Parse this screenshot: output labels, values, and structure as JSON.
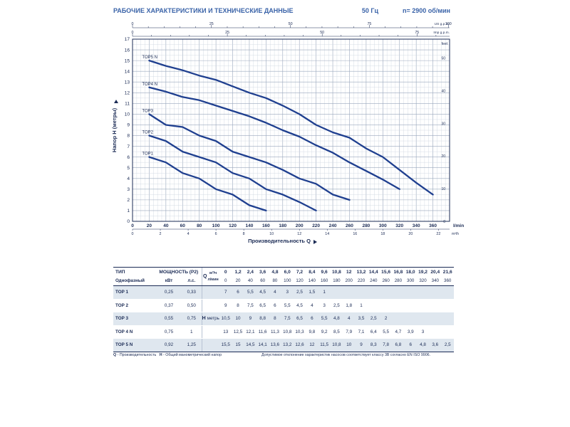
{
  "header": {
    "title": "РАБОЧИЕ ХАРАКТЕРИСТИКИ И ТЕХНИЧЕСКИЕ ДАННЫЕ",
    "freq": "50 Гц",
    "speed": "n= 2900 об/мин"
  },
  "chart_data": {
    "type": "line",
    "ylabel": "Напор H (метры)",
    "xlabel": "Производительность Q",
    "x_unit": "l/min",
    "x2_unit": "m³/h",
    "y2_unit": "feet",
    "top_axis_us_unit": "US g.p.m.",
    "top_axis_imp_unit": "Imp g.p.m.",
    "xlim": [
      0,
      380
    ],
    "ylim": [
      0,
      17
    ],
    "grid": true,
    "y_ticks": [
      "0",
      "1",
      "2",
      "3",
      "4",
      "5",
      "6",
      "7",
      "8",
      "9",
      "10",
      "11",
      "12",
      "13",
      "14",
      "15",
      "16",
      "17"
    ],
    "x_ticks": [
      "0",
      "20",
      "40",
      "60",
      "80",
      "100",
      "120",
      "140",
      "160",
      "180",
      "200",
      "220",
      "240",
      "260",
      "280",
      "300",
      "320",
      "340",
      "360"
    ],
    "x2_ticks": [
      "0",
      "2",
      "4",
      "6",
      "8",
      "10",
      "12",
      "14",
      "16",
      "18",
      "20",
      "22"
    ],
    "y2_ticks": [
      "0",
      "10",
      "20",
      "30",
      "40",
      "50"
    ],
    "top_us_ticks": [
      "0",
      "25",
      "50",
      "75",
      "100"
    ],
    "top_imp_ticks": [
      "0",
      "25",
      "50",
      "75"
    ],
    "series": [
      {
        "name": "TOP5 N",
        "x": [
          20,
          40,
          60,
          80,
          100,
          120,
          140,
          160,
          180,
          200,
          220,
          240,
          260,
          280,
          300,
          320,
          340,
          360
        ],
        "y": [
          15,
          14.5,
          14.1,
          13.6,
          13.2,
          12.6,
          12,
          11.5,
          10.8,
          10,
          9,
          8.3,
          7.8,
          6.8,
          6,
          4.8,
          3.6,
          2.5
        ]
      },
      {
        "name": "TOP4 N",
        "x": [
          20,
          40,
          60,
          80,
          100,
          120,
          140,
          160,
          180,
          200,
          220,
          240,
          260,
          280,
          300,
          320
        ],
        "y": [
          12.5,
          12.1,
          11.6,
          11.3,
          10.8,
          10.3,
          9.8,
          9.2,
          8.5,
          7.9,
          7.1,
          6.4,
          5.5,
          4.7,
          3.9,
          3
        ]
      },
      {
        "name": "TOP3",
        "x": [
          20,
          40,
          60,
          80,
          100,
          120,
          140,
          160,
          180,
          200,
          220,
          240,
          260
        ],
        "y": [
          10,
          9,
          8.8,
          8,
          7.5,
          6.5,
          6,
          5.5,
          4.8,
          4,
          3.5,
          2.5,
          2
        ]
      },
      {
        "name": "TOP2",
        "x": [
          20,
          40,
          60,
          80,
          100,
          120,
          140,
          160,
          180,
          200,
          220
        ],
        "y": [
          8,
          7.5,
          6.5,
          6,
          5.5,
          4.5,
          4,
          3,
          2.5,
          1.8,
          1
        ]
      },
      {
        "name": "TOP1",
        "x": [
          20,
          40,
          60,
          80,
          100,
          120,
          140,
          160
        ],
        "y": [
          6,
          5.5,
          4.5,
          4,
          3,
          2.5,
          1.5,
          1
        ]
      }
    ],
    "color": "#1f3f8f"
  },
  "table": {
    "head": {
      "type": "ТИП",
      "power": "МОЩНОСТЬ (P2)",
      "single_phase": "Однофазный",
      "kw": "кВт",
      "hp": "л.с.",
      "q": "Q",
      "m3h": "м³/ч",
      "lmin": "л/мин",
      "m3h_values": [
        "0",
        "1,2",
        "2,4",
        "3,6",
        "4,8",
        "6,0",
        "7,2",
        "8,4",
        "9,6",
        "10,8",
        "12",
        "13,2",
        "14,4",
        "15,6",
        "16,8",
        "18,0",
        "19,2",
        "20,4",
        "21,6"
      ],
      "lmin_values": [
        "0",
        "20",
        "40",
        "60",
        "80",
        "100",
        "120",
        "140",
        "160",
        "180",
        "200",
        "220",
        "240",
        "260",
        "280",
        "300",
        "320",
        "340",
        "360"
      ]
    },
    "h_label": "H",
    "h_unit": "метры",
    "rows": [
      {
        "name": "TOP 1",
        "kw": "0,25",
        "hp": "0,33",
        "h": [
          "7",
          "6",
          "5,5",
          "4,5",
          "4",
          "3",
          "2,5",
          "1,5",
          "1",
          "",
          "",
          "",
          "",
          "",
          "",
          "",
          "",
          "",
          ""
        ]
      },
      {
        "name": "TOP 2",
        "kw": "0,37",
        "hp": "0,50",
        "h": [
          "9",
          "8",
          "7,5",
          "6,5",
          "6",
          "5,5",
          "4,5",
          "4",
          "3",
          "2,5",
          "1,8",
          "1",
          "",
          "",
          "",
          "",
          "",
          "",
          ""
        ]
      },
      {
        "name": "TOP 3",
        "kw": "0,55",
        "hp": "0,75",
        "h": [
          "10,5",
          "10",
          "9",
          "8,8",
          "8",
          "7,5",
          "6,5",
          "6",
          "5,5",
          "4,8",
          "4",
          "3,5",
          "2,5",
          "2",
          "",
          "",
          "",
          "",
          ""
        ]
      },
      {
        "name": "TOP 4 N",
        "kw": "0,75",
        "hp": "1",
        "h": [
          "13",
          "12,5",
          "12,1",
          "11,6",
          "11,3",
          "10,8",
          "10,3",
          "9,8",
          "9,2",
          "8,5",
          "7,9",
          "7,1",
          "6,4",
          "5,5",
          "4,7",
          "3,9",
          "3",
          "",
          ""
        ]
      },
      {
        "name": "TOP 5 N",
        "kw": "0,92",
        "hp": "1,25",
        "h": [
          "15,5",
          "15",
          "14,5",
          "14,1",
          "13,6",
          "13,2",
          "12,6",
          "12",
          "11,5",
          "10,8",
          "10",
          "9",
          "8,3",
          "7,8",
          "6,8",
          "6",
          "4,8",
          "3,6",
          "2,5"
        ]
      }
    ]
  },
  "footer": {
    "q_key": "Q",
    "q_text": "- Производительность",
    "h_key": "H",
    "h_text": "- Общий манометрический напор",
    "note": "Допустимое отклонение характеристик насосов соответствует классу 3B согласно EN ISO 9906."
  }
}
